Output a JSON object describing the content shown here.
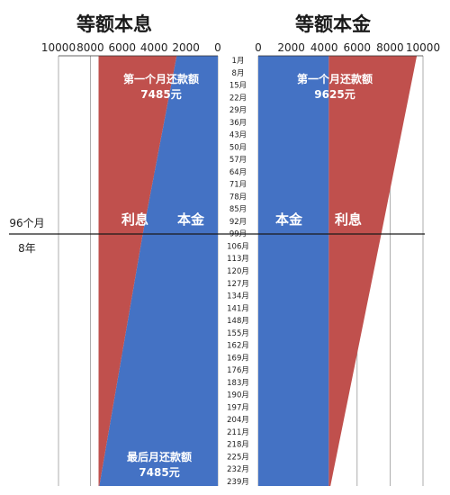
{
  "chart_data": [
    {
      "type": "area",
      "title": "等额本息",
      "x_axis_reversed": true,
      "xlim": [
        0,
        10000
      ],
      "ticks": [
        "10000",
        "8000",
        "6000",
        "4000",
        "2000",
        "0"
      ],
      "series": [
        {
          "name": "本金",
          "color": "#4472c4",
          "months": [
            1,
            99,
            239
          ],
          "values": [
            2580,
            4700,
            7440
          ]
        },
        {
          "name": "利息",
          "color": "#c0504d",
          "months": [
            1,
            99,
            239
          ],
          "values": [
            4905,
            2785,
            45
          ]
        }
      ],
      "total_payment": 7485,
      "annotations": [
        {
          "text": "第一个月还款额",
          "value": "7485元"
        },
        {
          "text": "最后月还款额",
          "value": "7485元"
        }
      ]
    },
    {
      "type": "area",
      "title": "等额本金",
      "x_axis_reversed": false,
      "xlim": [
        0,
        10000
      ],
      "ticks": [
        "0",
        "2000",
        "4000",
        "6000",
        "8000",
        "10000"
      ],
      "series": [
        {
          "name": "本金",
          "color": "#4472c4",
          "months": [
            1,
            239
          ],
          "values": [
            4280,
            4280
          ]
        },
        {
          "name": "利息",
          "color": "#c0504d",
          "months": [
            1,
            99,
            239
          ],
          "values": [
            5345,
            3200,
            100
          ]
        }
      ],
      "annotations": [
        {
          "text": "第一个月还款额",
          "value": "9625元"
        }
      ]
    }
  ],
  "months": [
    "1月",
    "8月",
    "15月",
    "22月",
    "29月",
    "36月",
    "43月",
    "50月",
    "57月",
    "64月",
    "71月",
    "78月",
    "85月",
    "92月",
    "99月",
    "106月",
    "113月",
    "120月",
    "127月",
    "134月",
    "141月",
    "148月",
    "155月",
    "162月",
    "169月",
    "176月",
    "183月",
    "190月",
    "197月",
    "204月",
    "211月",
    "218月",
    "225月",
    "232月",
    "239月"
  ],
  "reference_line": {
    "label": "96个月",
    "sublabel": "8年"
  },
  "colors": {
    "principal": "#4472c4",
    "interest": "#c0504d",
    "axis": "#333333",
    "grid": "#999999"
  }
}
